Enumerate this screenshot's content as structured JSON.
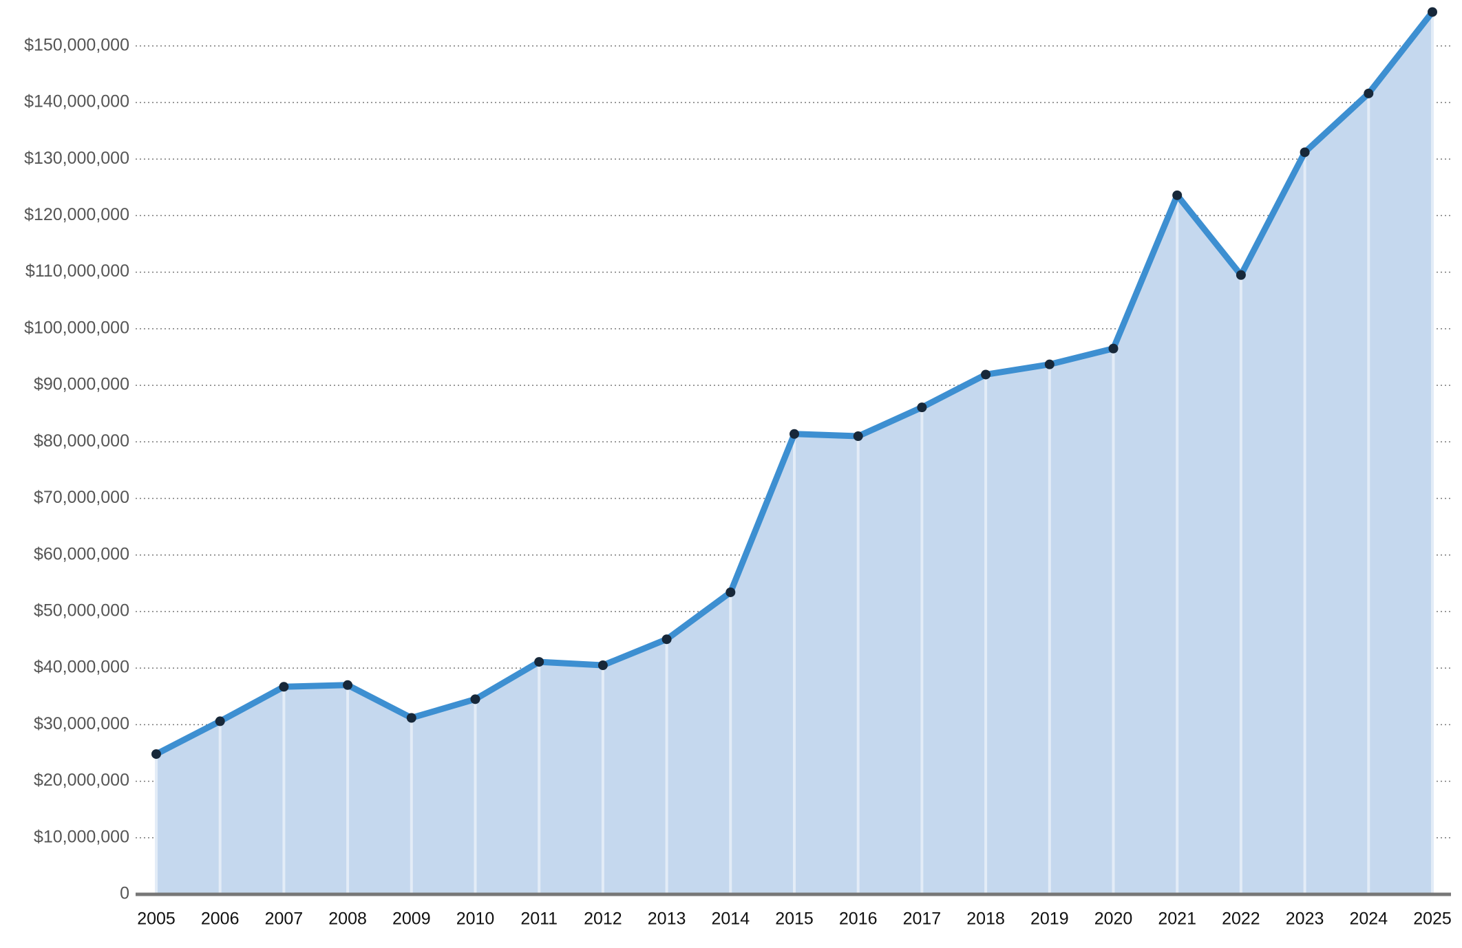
{
  "chart_data": {
    "type": "area",
    "categories": [
      "2005",
      "2006",
      "2007",
      "2008",
      "2009",
      "2010",
      "2011",
      "2012",
      "2013",
      "2014",
      "2015",
      "2016",
      "2017",
      "2018",
      "2019",
      "2020",
      "2021",
      "2022",
      "2023",
      "2024",
      "2025"
    ],
    "values": [
      24800000,
      30600000,
      36700000,
      37000000,
      31200000,
      34500000,
      41100000,
      40500000,
      45100000,
      53400000,
      81400000,
      81000000,
      86100000,
      91900000,
      93700000,
      96500000,
      123600000,
      109500000,
      131200000,
      141600000,
      156000000
    ],
    "color": "#3d8fd1",
    "fill": "#c5d8ee",
    "marker_color": "#17283a",
    "ylim": [
      0,
      158000000
    ],
    "yticks": [
      0,
      {
        "value": 10000000,
        "label": "$10,000,000"
      },
      {
        "value": 20000000,
        "label": "$20,000,000"
      },
      {
        "value": 30000000,
        "label": "$30,000,000"
      },
      {
        "value": 40000000,
        "label": "$40,000,000"
      },
      {
        "value": 50000000,
        "label": "$50,000,000"
      },
      {
        "value": 60000000,
        "label": "$60,000,000"
      },
      {
        "value": 70000000,
        "label": "$70,000,000"
      },
      {
        "value": 80000000,
        "label": "$80,000,000"
      },
      {
        "value": 90000000,
        "label": "$90,000,000"
      },
      {
        "value": 100000000,
        "label": "$100,000,000"
      },
      {
        "value": 110000000,
        "label": "$110,000,000"
      },
      {
        "value": 120000000,
        "label": "$120,000,000"
      },
      {
        "value": 130000000,
        "label": "$130,000,000"
      },
      {
        "value": 140000000,
        "label": "$140,000,000"
      },
      {
        "value": 150000000,
        "label": "$150,000,000"
      }
    ],
    "grid": true
  }
}
